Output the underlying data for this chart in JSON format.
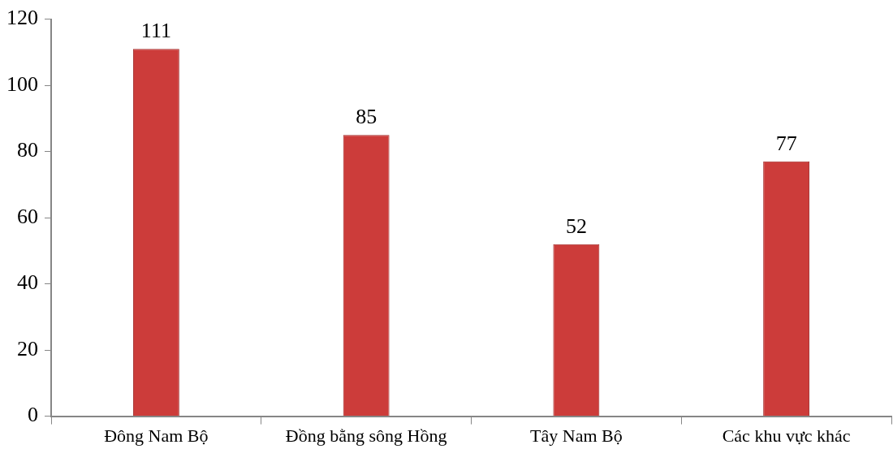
{
  "chart_data": {
    "type": "bar",
    "categories": [
      "Đông Nam Bộ",
      "Đồng bằng sông Hồng",
      "Tây Nam Bộ",
      "Các khu vực khác"
    ],
    "values": [
      111,
      85,
      52,
      77
    ],
    "color": "#cc3c3a",
    "ylim": [
      0,
      120
    ],
    "yticks": [
      0,
      20,
      40,
      60,
      80,
      100,
      120
    ],
    "grid": false,
    "data_labels": true,
    "legend": false
  }
}
